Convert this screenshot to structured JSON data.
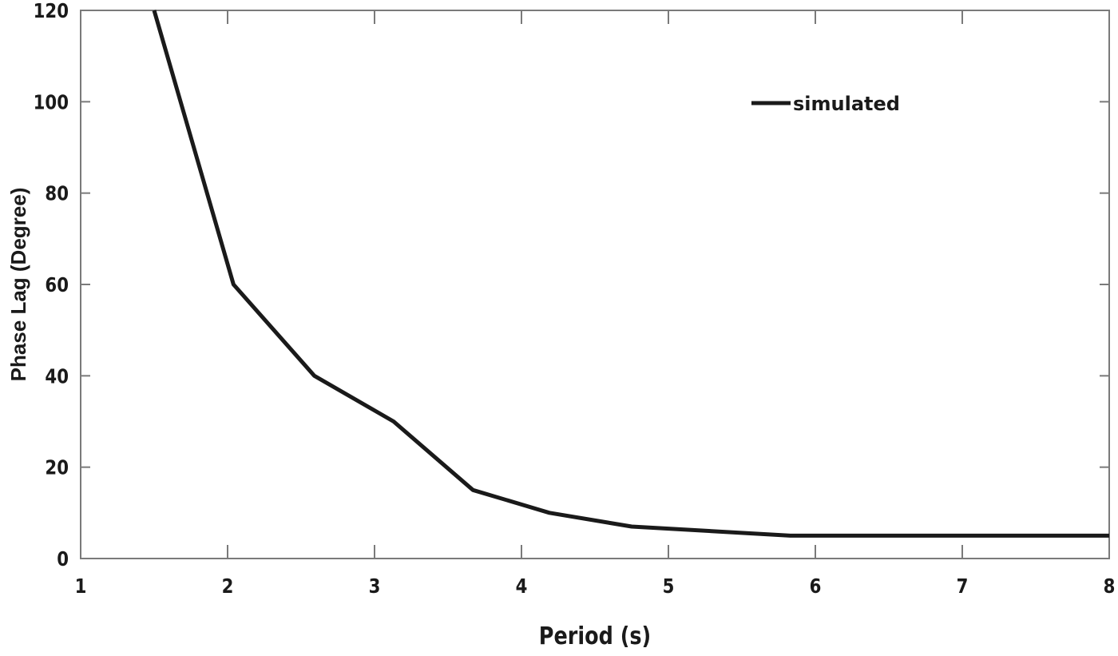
{
  "chart_data": {
    "type": "line",
    "title": "",
    "xlabel": "Period (s)",
    "ylabel": "Phase Lag (Degree)",
    "xlim": [
      1,
      8
    ],
    "ylim": [
      0,
      120
    ],
    "xticks": [
      1,
      2,
      3,
      4,
      5,
      6,
      7,
      8
    ],
    "yticks": [
      0,
      20,
      40,
      60,
      80,
      100,
      120
    ],
    "grid": false,
    "legend_position": "upper right (inside)",
    "series": [
      {
        "name": "simulated",
        "color": "#1a1a1a",
        "x": [
          1.5,
          2.04,
          2.59,
          3.13,
          3.67,
          4.19,
          4.75,
          5.83,
          8.0
        ],
        "y": [
          120,
          60,
          40,
          30,
          15,
          10,
          7,
          5,
          5
        ]
      }
    ]
  },
  "colors": {
    "axis": "#7a7a7a",
    "line": "#1a1a1a",
    "text": "#1a1a1a",
    "background": "#ffffff"
  }
}
